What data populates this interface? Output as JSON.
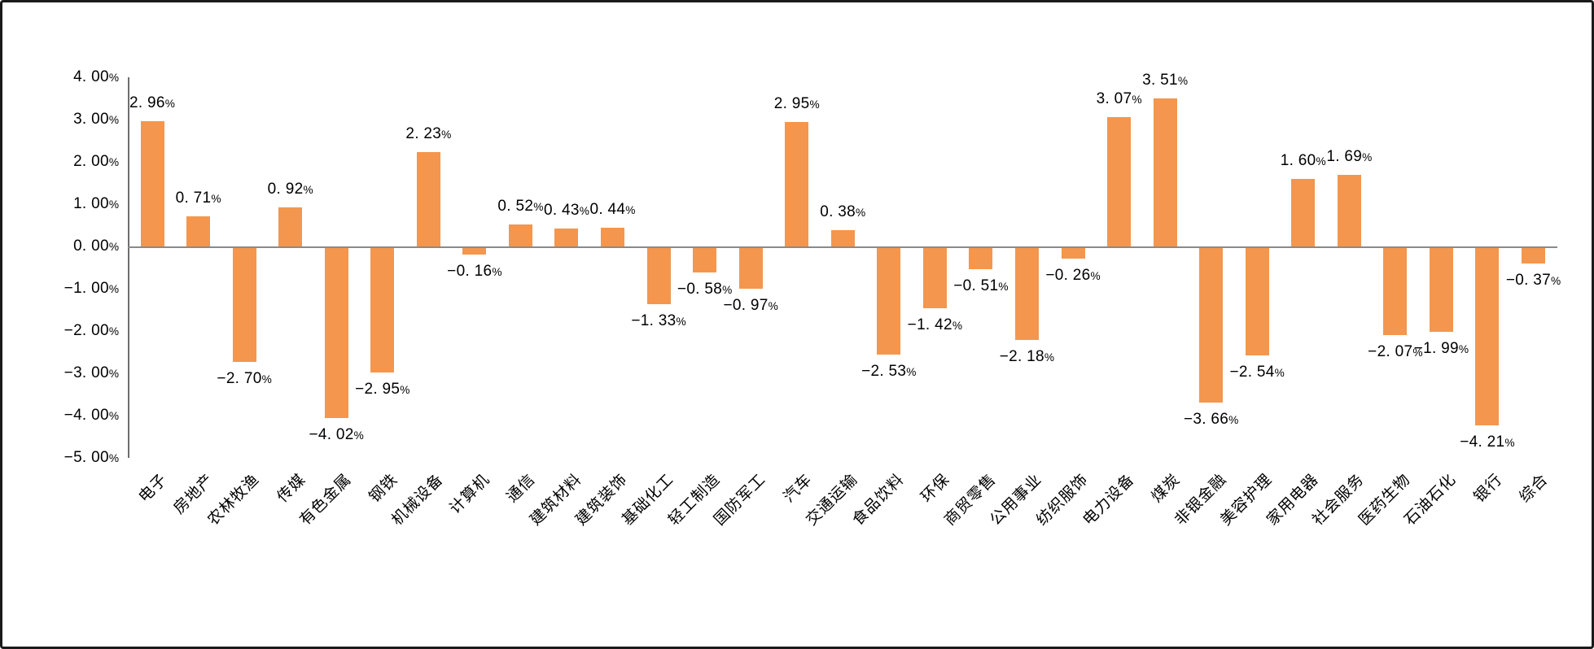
{
  "chart_data": {
    "type": "bar",
    "title": "",
    "xlabel": "",
    "ylabel": "",
    "grid": false,
    "legend": null,
    "bar_color": "#F4964D",
    "axis_color": "#6e6e6e",
    "zero_line_color": "#8a8a8a",
    "categories": [
      "电子",
      "房地产",
      "农林牧渔",
      "传媒",
      "有色金属",
      "钢铁",
      "机械设备",
      "计算机",
      "通信",
      "建筑材料",
      "建筑装饰",
      "基础化工",
      "轻工制造",
      "国防军工",
      "汽车",
      "交通运输",
      "食品饮料",
      "环保",
      "商贸零售",
      "公用事业",
      "纺织服饰",
      "电力设备",
      "煤炭",
      "非银金融",
      "美容护理",
      "家用电器",
      "社会服务",
      "医药生物",
      "石油石化",
      "银行",
      "综合"
    ],
    "values": [
      2.96,
      0.71,
      -2.7,
      0.92,
      -4.02,
      -2.95,
      2.23,
      -0.16,
      0.52,
      0.43,
      0.44,
      -1.33,
      -0.58,
      -0.97,
      2.95,
      0.38,
      -2.53,
      -1.42,
      -0.51,
      -2.18,
      -0.26,
      3.07,
      3.51,
      -3.66,
      -2.54,
      1.6,
      1.69,
      -2.07,
      -1.99,
      -4.21,
      -0.37
    ],
    "value_labels": [
      "2. 96%",
      "0. 71%",
      "−2. 70%",
      "0. 92%",
      "−4. 02%",
      "−2. 95%",
      "2. 23%",
      "−0. 16%",
      "0. 52%",
      "0. 43%",
      "0. 44%",
      "−1. 33%",
      "−0. 58%",
      "−0. 97%",
      "2. 95%",
      "0. 38%",
      "−2. 53%",
      "−1. 42%",
      "−0. 51%",
      "−2. 18%",
      "−0. 26%",
      "3. 07%",
      "3. 51%",
      "−3. 66%",
      "−2. 54%",
      "1. 60%",
      "1. 69%",
      "−2. 07%",
      "−1. 99%",
      "−4. 21%",
      "−0. 37%"
    ],
    "y_axis": {
      "min": -5,
      "max": 4,
      "tick_values": [
        4,
        3,
        2,
        1,
        0,
        -1,
        -2,
        -3,
        -4,
        -5
      ],
      "tick_labels": [
        "4. 00%",
        "3. 00%",
        "2. 00%",
        "1. 00%",
        "0. 00%",
        "−1. 00%",
        "−2. 00%",
        "−3. 00%",
        "−4. 00%",
        "−5. 00%"
      ]
    }
  }
}
